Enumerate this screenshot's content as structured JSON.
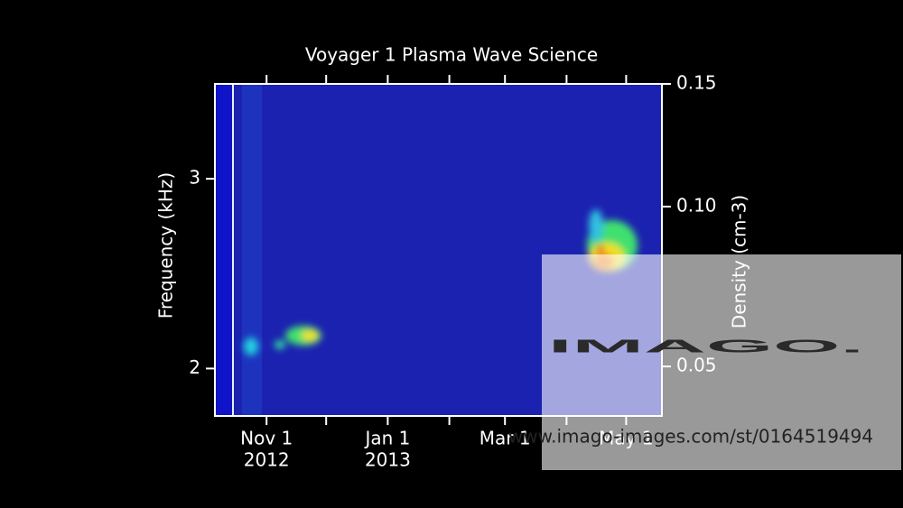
{
  "chart_data": {
    "type": "spectrogram",
    "title": "Voyager 1 Plasma Wave Science",
    "ylabel": "Frequency (kHz)",
    "y2label": "Density (cm-3)",
    "ylim": [
      1.75,
      3.5
    ],
    "yticks": [
      2,
      3
    ],
    "y2lim": [
      0.038,
      0.15
    ],
    "y2scale": "sqrt",
    "y2ticks": [
      {
        "value": 0.05,
        "label": "0.05"
      },
      {
        "value": 0.1,
        "label": "0.10"
      },
      {
        "value": 0.15,
        "label": "0.15"
      }
    ],
    "xlim": [
      "2012-10-06",
      "2013-05-19"
    ],
    "xticks": [
      {
        "value": "2012-11-01",
        "label": "Nov 1",
        "year": "2012"
      },
      {
        "value": "2012-12-01",
        "label": null
      },
      {
        "value": "2013-01-01",
        "label": "Jan 1",
        "year": "2013"
      },
      {
        "value": "2013-02-01",
        "label": null
      },
      {
        "value": "2013-03-01",
        "label": "Mar 1"
      },
      {
        "value": "2013-04-01",
        "label": null
      },
      {
        "value": "2013-05-01",
        "label": "May 1"
      }
    ]
  },
  "watermark": {
    "logo": "IMAGO.",
    "url": "www.imago-images.com/st/0164519494"
  }
}
